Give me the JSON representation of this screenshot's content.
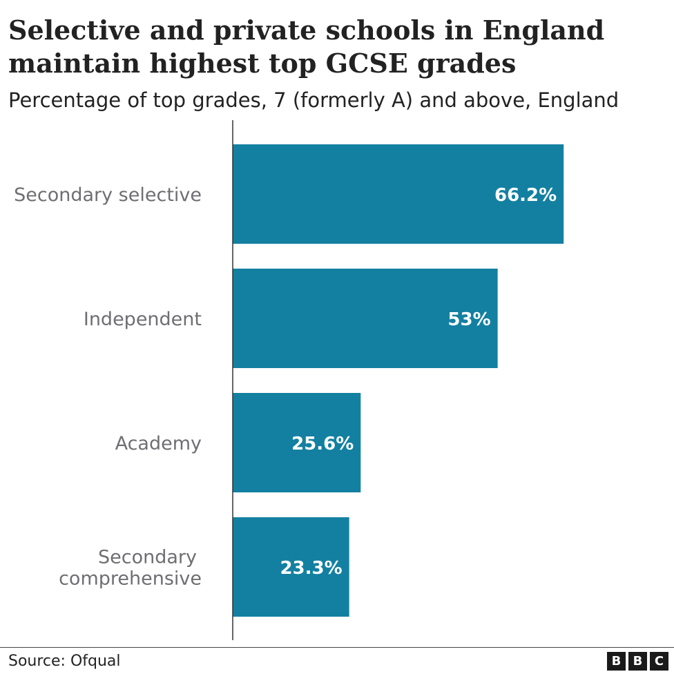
{
  "title": "Selective and private schools in England maintain highest top GCSE grades",
  "subtitle": "Percentage of top grades, 7 (formerly A) and above, England",
  "source": "Source: Ofqual",
  "logo": [
    "B",
    "B",
    "C"
  ],
  "colors": {
    "bar": "#1380A1",
    "axis": "#333333",
    "category_text": "#6E6E73",
    "value_text": "#FFFFFF"
  },
  "chart_data": {
    "type": "bar",
    "orientation": "horizontal",
    "categories": [
      [
        "Secondary selective"
      ],
      [
        "Independent"
      ],
      [
        "Academy"
      ],
      [
        "Secondary",
        "comprehensive"
      ]
    ],
    "values": [
      66.2,
      53,
      25.6,
      23.3
    ],
    "value_labels": [
      "66.2%",
      "53%",
      "25.6%",
      "23.3%"
    ],
    "title": "Selective and private schools in England maintain highest top GCSE grades",
    "subtitle": "Percentage of top grades, 7 (formerly A) and above, England",
    "xlabel": "",
    "ylabel": "",
    "xlim": [
      0,
      88
    ],
    "grid": false,
    "legend": "none"
  }
}
